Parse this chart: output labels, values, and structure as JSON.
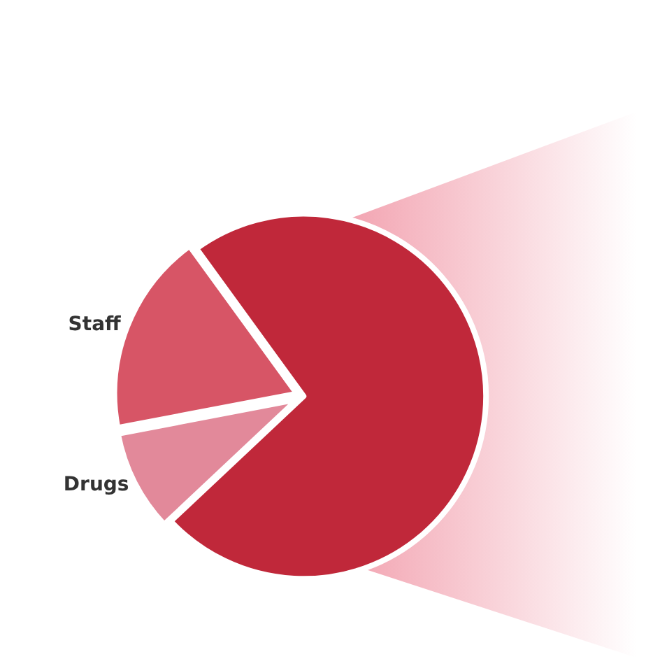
{
  "chart_data": {
    "type": "pie",
    "categories": [
      null,
      "Drugs",
      "Staff"
    ],
    "values": [
      73,
      9,
      18
    ],
    "colors": [
      "#c0283a",
      "#e2899a",
      "#d75566"
    ]
  }
}
